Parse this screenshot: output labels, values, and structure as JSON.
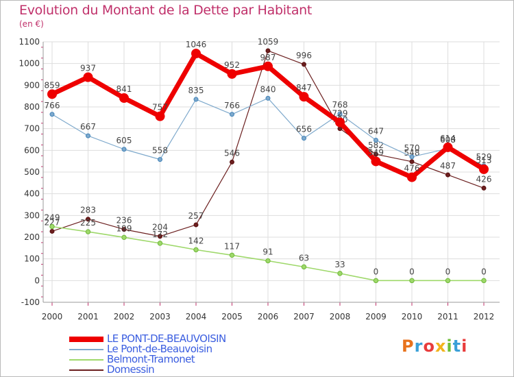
{
  "header": {
    "title": "Evolution du Montant de la Dette par Habitant",
    "unit": "(en €)"
  },
  "logo": {
    "text": "Proxiti",
    "colors": [
      "#e8721c",
      "#3aa0d8",
      "#e83c3c",
      "#f2b31c",
      "#6fbf3a",
      "#3aa0d8",
      "#e83c3c"
    ]
  },
  "chart_data": {
    "type": "line",
    "title": "Evolution du Montant de la Dette par Habitant",
    "ylabel": "(en €)",
    "xlabel": "",
    "x": [
      2000,
      2001,
      2002,
      2003,
      2004,
      2005,
      2006,
      2007,
      2008,
      2009,
      2010,
      2011,
      2012
    ],
    "ylim": [
      -100,
      1100
    ],
    "yticks": [
      -100,
      0,
      100,
      200,
      300,
      400,
      500,
      600,
      700,
      800,
      900,
      1000,
      1100
    ],
    "grid": true,
    "legend": "bottom-left",
    "series": [
      {
        "name": "Domessin",
        "color": "#6b1f1f",
        "values": [
          227,
          283,
          236,
          204,
          257,
          546,
          1059,
          996,
          700,
          582,
          548,
          487,
          426
        ]
      },
      {
        "name": "Belmont-Tramonet",
        "color": "#9ed86a",
        "values": [
          249,
          225,
          199,
          172,
          142,
          117,
          91,
          63,
          33,
          0,
          0,
          0,
          0
        ]
      },
      {
        "name": "Le Pont-de-Beauvoisin",
        "color": "#7ea9cc",
        "values": [
          766,
          667,
          605,
          558,
          835,
          766,
          840,
          656,
          768,
          647,
          570,
          608,
          529
        ]
      },
      {
        "name": "LE PONT-DE-BEAUVOISIN",
        "color": "#ee0000",
        "values": [
          859,
          937,
          841,
          757,
          1046,
          952,
          987,
          847,
          729,
          549,
          476,
          614,
          513
        ]
      }
    ]
  }
}
